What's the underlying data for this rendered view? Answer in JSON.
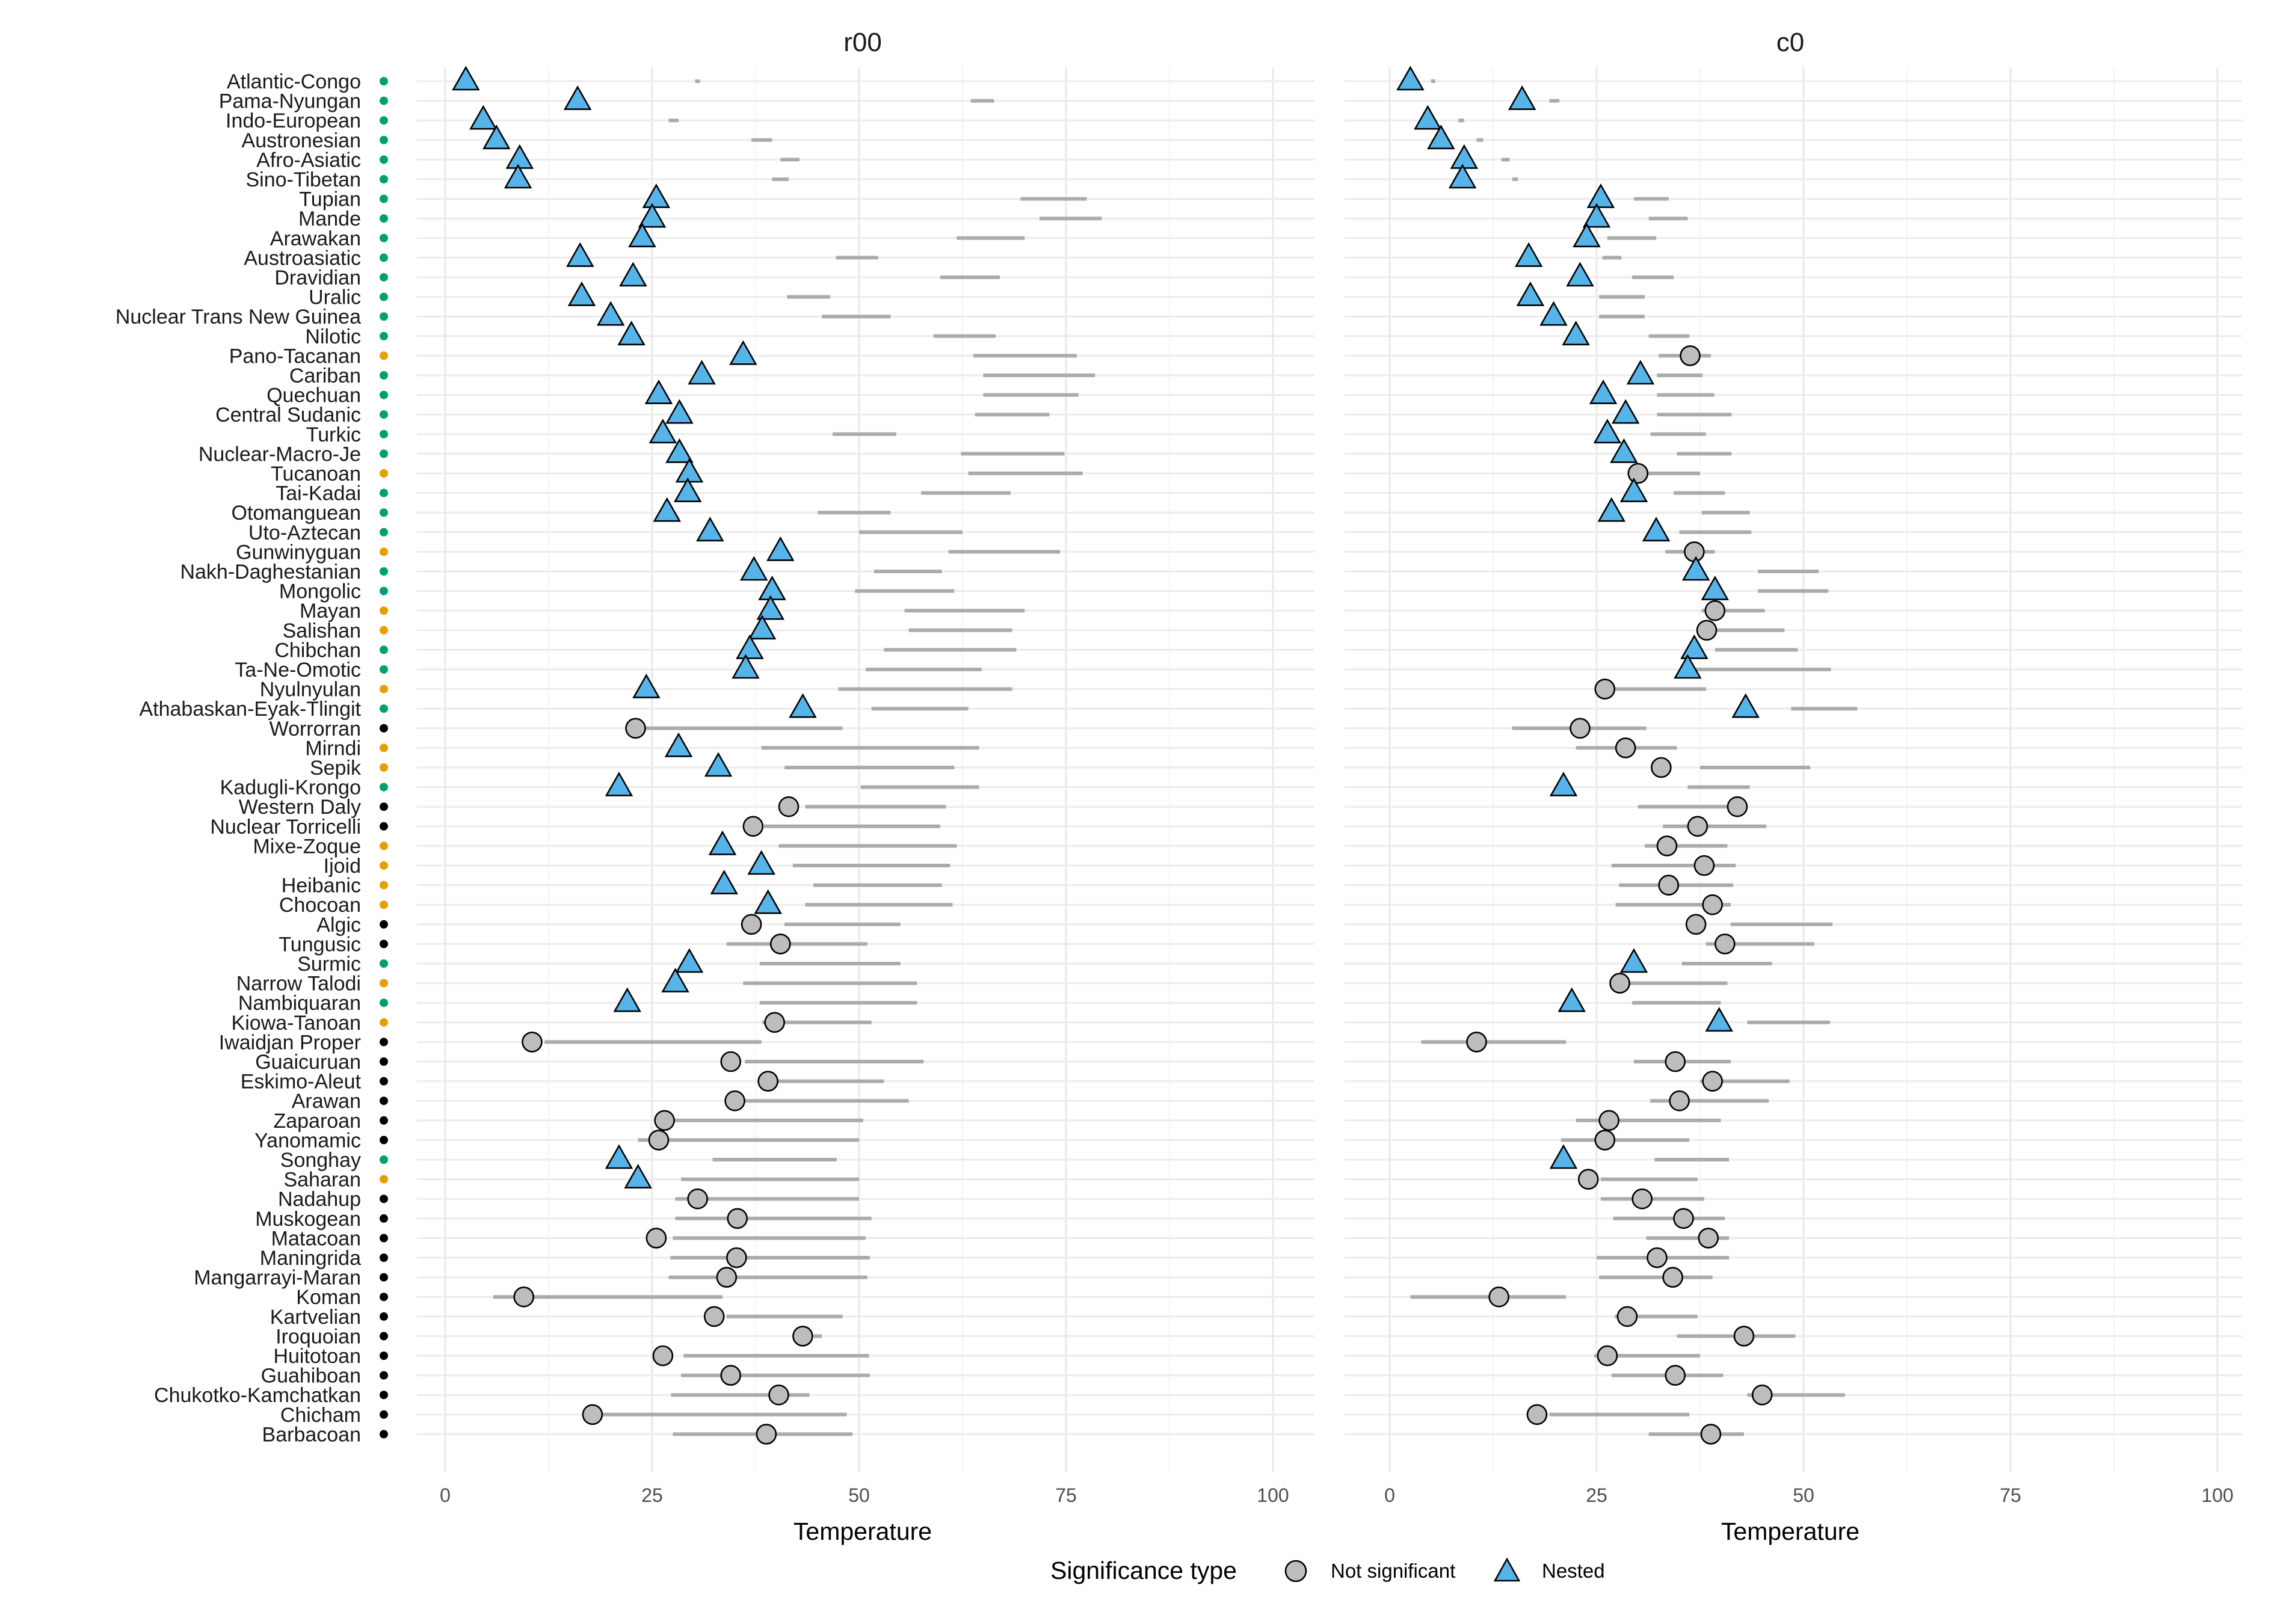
{
  "chart_data": {
    "type": "scatter",
    "families": [
      "Atlantic-Congo",
      "Pama-Nyungan",
      "Indo-European",
      "Austronesian",
      "Afro-Asiatic",
      "Sino-Tibetan",
      "Tupian",
      "Mande",
      "Arawakan",
      "Austroasiatic",
      "Dravidian",
      "Uralic",
      "Nuclear Trans New Guinea",
      "Nilotic",
      "Pano-Tacanan",
      "Cariban",
      "Quechuan",
      "Central Sudanic",
      "Turkic",
      "Nuclear-Macro-Je",
      "Tucanoan",
      "Tai-Kadai",
      "Otomanguean",
      "Uto-Aztecan",
      "Gunwinyguan",
      "Nakh-Daghestanian",
      "Mongolic",
      "Mayan",
      "Salishan",
      "Chibchan",
      "Ta-Ne-Omotic",
      "Nyulnyulan",
      "Athabaskan-Eyak-Tlingit",
      "Worrorran",
      "Mirndi",
      "Sepik",
      "Kadugli-Krongo",
      "Western Daly",
      "Nuclear Torricelli",
      "Mixe-Zoque",
      "Ijoid",
      "Heibanic",
      "Chocoan",
      "Algic",
      "Tungusic",
      "Surmic",
      "Narrow Talodi",
      "Nambiquaran",
      "Kiowa-Tanoan",
      "Iwaidjan Proper",
      "Guaicuruan",
      "Eskimo-Aleut",
      "Arawan",
      "Zaparoan",
      "Yanomamic",
      "Songhay",
      "Saharan",
      "Nadahup",
      "Muskogean",
      "Matacoan",
      "Maningrida",
      "Mangarrayi-Maran",
      "Koman",
      "Kartvelian",
      "Iroquoian",
      "Huitotoan",
      "Guahiboan",
      "Chukotko-Kamchatkan",
      "Chicham",
      "Barbacoan"
    ],
    "dot_colors": [
      "#009E73",
      "#009E73",
      "#009E73",
      "#009E73",
      "#009E73",
      "#009E73",
      "#009E73",
      "#009E73",
      "#009E73",
      "#009E73",
      "#009E73",
      "#009E73",
      "#009E73",
      "#009E73",
      "#E69F00",
      "#009E73",
      "#009E73",
      "#009E73",
      "#009E73",
      "#009E73",
      "#E69F00",
      "#009E73",
      "#009E73",
      "#009E73",
      "#E69F00",
      "#009E73",
      "#009E73",
      "#E69F00",
      "#E69F00",
      "#009E73",
      "#009E73",
      "#E69F00",
      "#009E73",
      "#000000",
      "#E69F00",
      "#E69F00",
      "#009E73",
      "#000000",
      "#000000",
      "#E69F00",
      "#E69F00",
      "#E69F00",
      "#E69F00",
      "#000000",
      "#000000",
      "#009E73",
      "#E69F00",
      "#009E73",
      "#E69F00",
      "#000000",
      "#000000",
      "#000000",
      "#000000",
      "#000000",
      "#000000",
      "#009E73",
      "#E69F00",
      "#000000",
      "#000000",
      "#000000",
      "#000000",
      "#000000",
      "#000000",
      "#000000",
      "#000000",
      "#000000",
      "#000000",
      "#000000",
      "#000000",
      "#000000"
    ],
    "panels": [
      {
        "title": "r00",
        "xlabel": "Temperature",
        "xlim": [
          0,
          100
        ],
        "xticks": [
          "0",
          "25",
          "50",
          "75",
          "100"
        ],
        "points": [
          2.5,
          16,
          4.6,
          6.2,
          9,
          8.8,
          25.5,
          25,
          23.8,
          16.3,
          22.7,
          16.5,
          20,
          22.5,
          36,
          31,
          25.8,
          28.3,
          26.3,
          28.3,
          29.5,
          29.3,
          26.8,
          32,
          40.5,
          37.3,
          39.5,
          39.3,
          38.3,
          36.8,
          36.3,
          24.3,
          43.2,
          23,
          28.2,
          33,
          21,
          41.5,
          37.2,
          33.5,
          38.2,
          33.7,
          39,
          37,
          40.5,
          29.5,
          27.8,
          22,
          39.8,
          10.5,
          34.5,
          39,
          35,
          26.5,
          25.8,
          21,
          23.3,
          30.5,
          35.3,
          25.5,
          35.2,
          34,
          9.5,
          32.5,
          43.2,
          26.3,
          34.5,
          40.3,
          17.8,
          38.8
        ],
        "shapes": [
          "nested",
          "nested",
          "nested",
          "nested",
          "nested",
          "nested",
          "nested",
          "nested",
          "nested",
          "nested",
          "nested",
          "nested",
          "nested",
          "nested",
          "nested",
          "nested",
          "nested",
          "nested",
          "nested",
          "nested",
          "nested",
          "nested",
          "nested",
          "nested",
          "nested",
          "nested",
          "nested",
          "nested",
          "nested",
          "nested",
          "nested",
          "nested",
          "nested",
          "ns",
          "nested",
          "nested",
          "nested",
          "ns",
          "ns",
          "nested",
          "nested",
          "nested",
          "nested",
          "ns",
          "ns",
          "nested",
          "nested",
          "nested",
          "ns",
          "ns",
          "ns",
          "ns",
          "ns",
          "ns",
          "ns",
          "nested",
          "nested",
          "ns",
          "ns",
          "ns",
          "ns",
          "ns",
          "ns",
          "ns",
          "ns",
          "ns",
          "ns",
          "ns",
          "ns",
          "ns"
        ],
        "ci_low": [
          30.2,
          63.5,
          27,
          37,
          40.5,
          39.5,
          69.5,
          71.8,
          61.8,
          47.2,
          59.8,
          41.3,
          45.5,
          59,
          63.8,
          65,
          65,
          64,
          46.8,
          62.3,
          63.2,
          57.5,
          45,
          50,
          60.8,
          51.8,
          49.5,
          55.5,
          56,
          53,
          50.8,
          47.5,
          51.5,
          23.5,
          38.2,
          41,
          50.2,
          43.5,
          38.5,
          40.3,
          42,
          44.5,
          43.5,
          41,
          34,
          38,
          36,
          38,
          38.3,
          12,
          36.2,
          38,
          35.5,
          27,
          23.3,
          32.3,
          28.5,
          27.8,
          27.8,
          27.5,
          27.2,
          27,
          5.8,
          34,
          44.5,
          28.8,
          28.5,
          27.3,
          18.8,
          27.5
        ],
        "ci_high": [
          30.8,
          66.3,
          28.2,
          39.5,
          42.8,
          41.5,
          77.5,
          79.3,
          70,
          52.3,
          67,
          46.5,
          53.8,
          66.5,
          76.3,
          78.5,
          76.5,
          73,
          54.5,
          74.8,
          77,
          68.3,
          53.8,
          62.5,
          74.3,
          60,
          61.5,
          70,
          68.5,
          69,
          64.8,
          68.5,
          63.2,
          48,
          64.5,
          61.5,
          64.5,
          60.5,
          59.8,
          61.8,
          61,
          60,
          61.3,
          55,
          51,
          55,
          57,
          57,
          51.5,
          38.2,
          57.8,
          53,
          56,
          50.5,
          50,
          47.3,
          50,
          50,
          51.5,
          50.8,
          51.3,
          51,
          33.5,
          48,
          45.5,
          51.2,
          51.3,
          44,
          48.5,
          49.2
        ]
      },
      {
        "title": "c0",
        "xlabel": "Temperature",
        "xlim": [
          0,
          100
        ],
        "xticks": [
          "0",
          "25",
          "50",
          "75",
          "100"
        ],
        "points": [
          2.5,
          16,
          4.6,
          6.2,
          9,
          8.8,
          25.5,
          25,
          23.8,
          16.8,
          23,
          17,
          19.8,
          22.5,
          36.3,
          30.3,
          25.8,
          28.5,
          26.3,
          28.3,
          30,
          29.5,
          26.8,
          32.2,
          36.8,
          37,
          39.3,
          39.3,
          38.3,
          36.8,
          36,
          26,
          43,
          23,
          28.5,
          32.8,
          21,
          42,
          37.2,
          33.5,
          38,
          33.7,
          39,
          37,
          40.5,
          29.5,
          27.8,
          22,
          39.8,
          10.5,
          34.5,
          39,
          35,
          26.5,
          26,
          21,
          24,
          30.5,
          35.5,
          38.5,
          32.3,
          34.2,
          13.2,
          28.7,
          42.8,
          26.3,
          34.5,
          45,
          17.8,
          38.8
        ],
        "shapes": [
          "nested",
          "nested",
          "nested",
          "nested",
          "nested",
          "nested",
          "nested",
          "nested",
          "nested",
          "nested",
          "nested",
          "nested",
          "nested",
          "nested",
          "ns",
          "nested",
          "nested",
          "nested",
          "nested",
          "nested",
          "ns",
          "nested",
          "nested",
          "nested",
          "ns",
          "nested",
          "nested",
          "ns",
          "ns",
          "nested",
          "nested",
          "ns",
          "nested",
          "ns",
          "ns",
          "ns",
          "nested",
          "ns",
          "ns",
          "ns",
          "ns",
          "ns",
          "ns",
          "ns",
          "ns",
          "nested",
          "ns",
          "nested",
          "nested",
          "ns",
          "ns",
          "ns",
          "ns",
          "ns",
          "ns",
          "nested",
          "ns",
          "ns",
          "ns",
          "ns",
          "ns",
          "ns",
          "ns",
          "ns",
          "ns",
          "ns",
          "ns",
          "ns",
          "ns",
          "ns"
        ],
        "ci_low": [
          5,
          19.3,
          8.3,
          10.5,
          13.5,
          14.8,
          29.5,
          31.3,
          26.3,
          25.7,
          29.3,
          25.3,
          25.3,
          31.3,
          32.5,
          32.3,
          32.3,
          32.3,
          31.5,
          34.7,
          30,
          34.3,
          37.7,
          35,
          33.3,
          44.5,
          44.5,
          37.7,
          38.3,
          39.3,
          37,
          27,
          48.5,
          14.8,
          22.5,
          37.5,
          36,
          30,
          33,
          30.8,
          26.8,
          27.7,
          27.3,
          41.2,
          38.2,
          35.3,
          27.2,
          29.3,
          43.2,
          3.8,
          29.5,
          37.5,
          31.5,
          22.5,
          20.7,
          32,
          25.5,
          25.5,
          27,
          31,
          25,
          25.3,
          2.5,
          27.2,
          34.7,
          24.7,
          26.8,
          43.2,
          19.3,
          31.3
        ],
        "ci_high": [
          5.5,
          20.5,
          9,
          11.3,
          14.5,
          15.5,
          33.7,
          36,
          32.2,
          28,
          34.3,
          30.8,
          30.8,
          36.2,
          38.8,
          37.8,
          39.2,
          41.3,
          38.2,
          41.3,
          37.5,
          40.5,
          43.5,
          43.7,
          39.3,
          51.8,
          53,
          45.3,
          47.7,
          49.3,
          53.3,
          38.2,
          56.5,
          31,
          34.7,
          50.8,
          43.5,
          43.2,
          45.5,
          40.8,
          41.8,
          41.5,
          41.2,
          53.5,
          51.3,
          46.2,
          40.8,
          40,
          53.2,
          21.3,
          41.2,
          48.3,
          45.8,
          40,
          36.2,
          41,
          37.2,
          38,
          40.5,
          41,
          41,
          39,
          21.3,
          37.2,
          49,
          37.5,
          40.3,
          55,
          36.2,
          42.8
        ]
      }
    ],
    "legend": {
      "title": "Significance type",
      "position": "bottom",
      "items": [
        {
          "label": "Not significant",
          "shape": "circle",
          "fill": "#BDBDBD"
        },
        {
          "label": "Nested",
          "shape": "triangle",
          "fill": "#56B4E9"
        }
      ]
    },
    "colors": {
      "ci_line": "#ABABAB",
      "grid": "#EBEBEB",
      "grid_minor": "#F4F4F4",
      "nested_fill": "#56B4E9",
      "ns_fill": "#BDBDBD"
    }
  }
}
